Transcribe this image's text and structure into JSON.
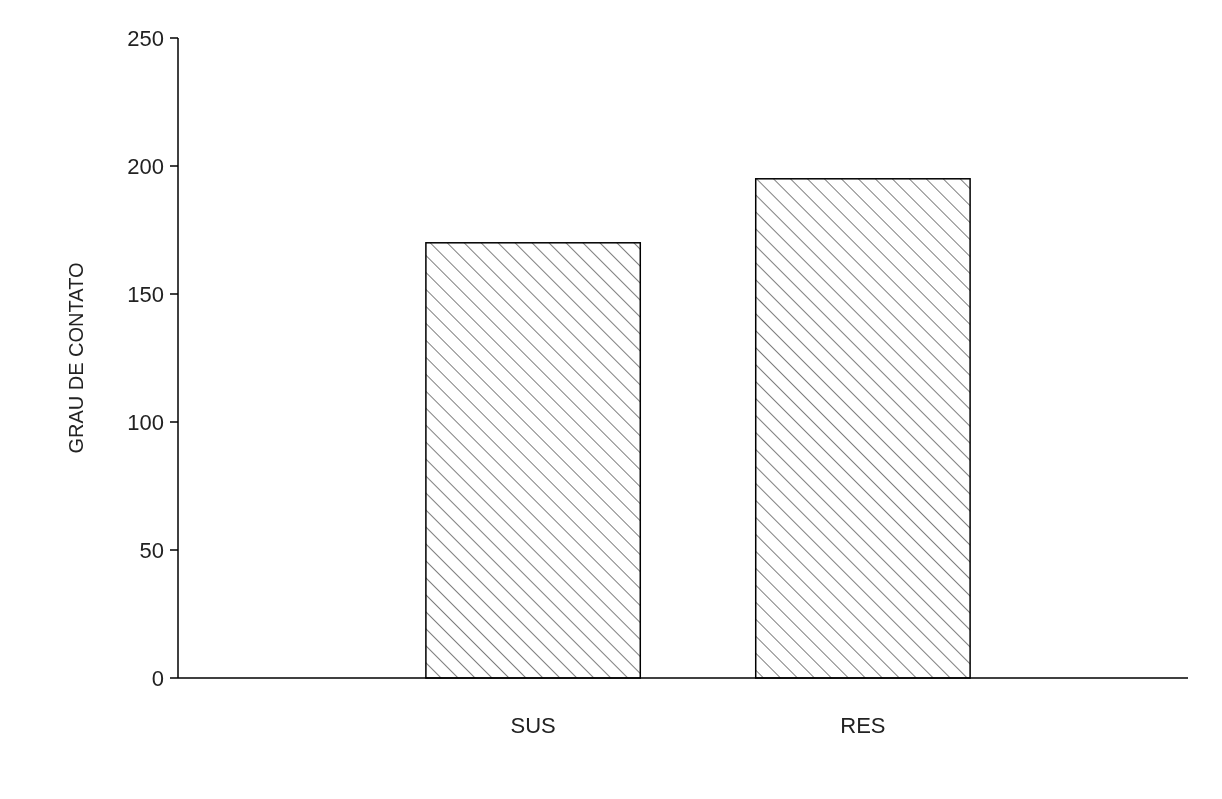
{
  "chart_data": {
    "type": "bar",
    "ylabel": "GRAU DE CONTATO",
    "categories": [
      "SUS",
      "RES"
    ],
    "values": [
      170,
      195
    ],
    "color": "#000000",
    "ylim": [
      0,
      250
    ],
    "yticks": [
      0,
      50,
      100,
      150,
      200,
      250
    ],
    "grid": false
  }
}
